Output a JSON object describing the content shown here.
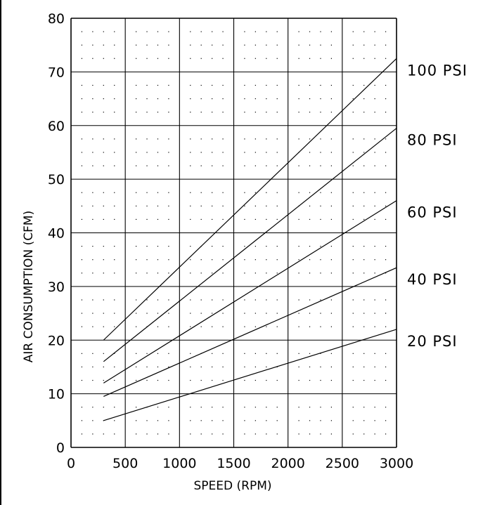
{
  "chart_data": {
    "type": "line",
    "title": "",
    "xlabel": "SPEED (RPM)",
    "ylabel": "AIR CONSUMPTION (CFM)",
    "xlim": [
      0,
      3000
    ],
    "ylim": [
      0,
      80
    ],
    "x_ticks": [
      "0",
      "500",
      "1000",
      "1500",
      "2000",
      "2500",
      "3000"
    ],
    "y_ticks": [
      "0",
      "10",
      "20",
      "30",
      "40",
      "50",
      "60",
      "70",
      "80"
    ],
    "grid": true,
    "line_color": "#000000",
    "series": [
      {
        "name": "100 PSI",
        "x": [
          300,
          3000
        ],
        "y": [
          20,
          72.5
        ]
      },
      {
        "name": "80 PSI",
        "x": [
          300,
          3000
        ],
        "y": [
          16,
          59.5
        ]
      },
      {
        "name": "60 PSI",
        "x": [
          300,
          3000
        ],
        "y": [
          12,
          46
        ]
      },
      {
        "name": "40 PSI",
        "x": [
          300,
          3000
        ],
        "y": [
          9.5,
          33.5
        ]
      },
      {
        "name": "20 PSI",
        "x": [
          300,
          3000
        ],
        "y": [
          5,
          22
        ]
      }
    ]
  }
}
